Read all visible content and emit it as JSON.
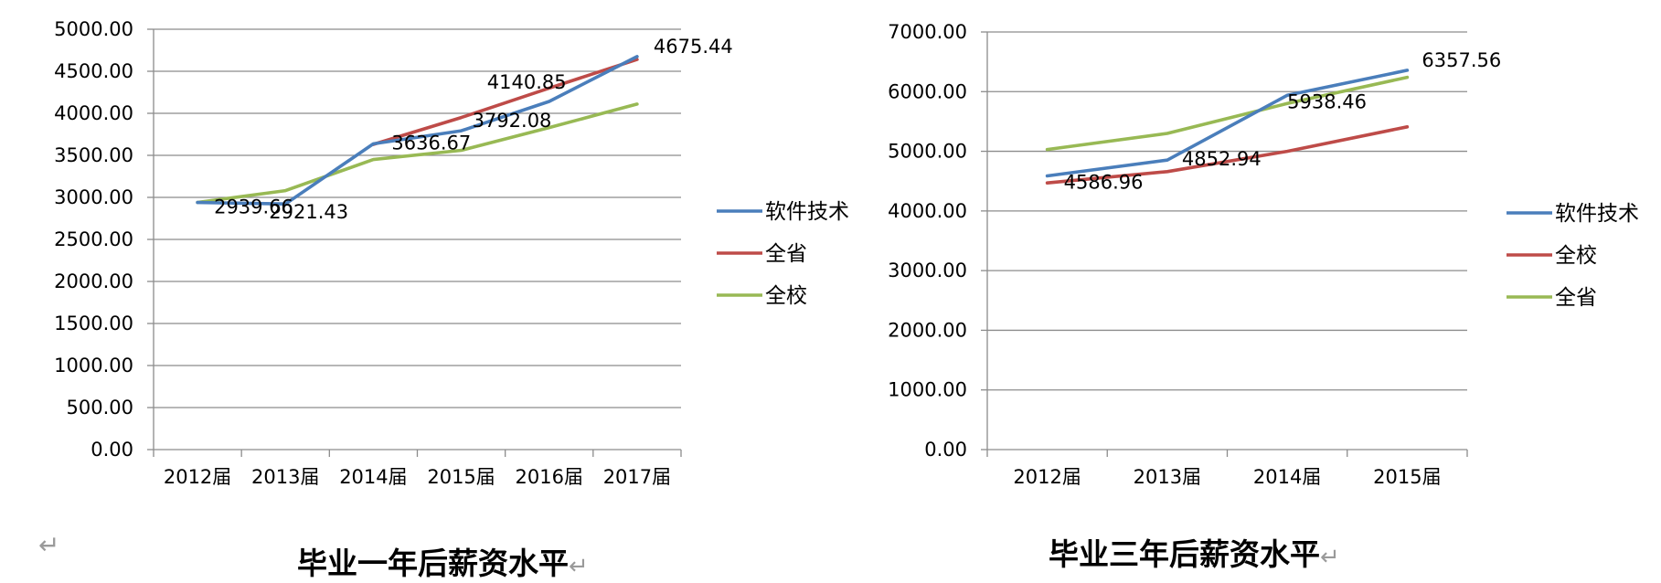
{
  "chart_data": [
    {
      "type": "line",
      "categories": [
        "2012届",
        "2013届",
        "2014届",
        "2015届",
        "2016届",
        "2017届"
      ],
      "ylim": [
        0,
        5000
      ],
      "y_ticks": [
        "0.00",
        "500.00",
        "1000.00",
        "1500.00",
        "2000.00",
        "2500.00",
        "3000.00",
        "3500.00",
        "4000.00",
        "4500.00",
        "5000.00"
      ],
      "grid": true,
      "legend_position": "right",
      "series": [
        {
          "name": "软件技术",
          "color": "#4a7ebb",
          "values": [
            2939.66,
            2921.43,
            3636.67,
            3792.08,
            4140.85,
            4675.44
          ]
        },
        {
          "name": "全省",
          "color": "#be4b48",
          "values": [
            null,
            null,
            3630,
            3950,
            4300,
            4640
          ]
        },
        {
          "name": "全校",
          "color": "#98b954",
          "values": [
            2940,
            3080,
            3450,
            3560,
            3830,
            4110
          ]
        }
      ],
      "data_labels": [
        "2939.66",
        "2921.43",
        "3636.67",
        "3792.08",
        "4140.85",
        "4675.44"
      ],
      "caption": "毕业一年后薪资水平"
    },
    {
      "type": "line",
      "categories": [
        "2012届",
        "2013届",
        "2014届",
        "2015届"
      ],
      "ylim": [
        0,
        7000
      ],
      "y_ticks": [
        "0.00",
        "1000.00",
        "2000.00",
        "3000.00",
        "4000.00",
        "5000.00",
        "6000.00",
        "7000.00"
      ],
      "grid": true,
      "legend_position": "right",
      "series": [
        {
          "name": "软件技术",
          "color": "#4a7ebb",
          "values": [
            4586.96,
            4852.94,
            5938.46,
            6357.56
          ]
        },
        {
          "name": "全校",
          "color": "#be4b48",
          "values": [
            4470,
            4660,
            5000,
            5410
          ]
        },
        {
          "name": "全省",
          "color": "#98b954",
          "values": [
            5030,
            5300,
            5800,
            6240
          ]
        }
      ],
      "data_labels": [
        "4586.96",
        "4852.94",
        "5938.46",
        "6357.56"
      ],
      "caption": "毕业三年后薪资水平"
    }
  ],
  "return_mark": "↵"
}
